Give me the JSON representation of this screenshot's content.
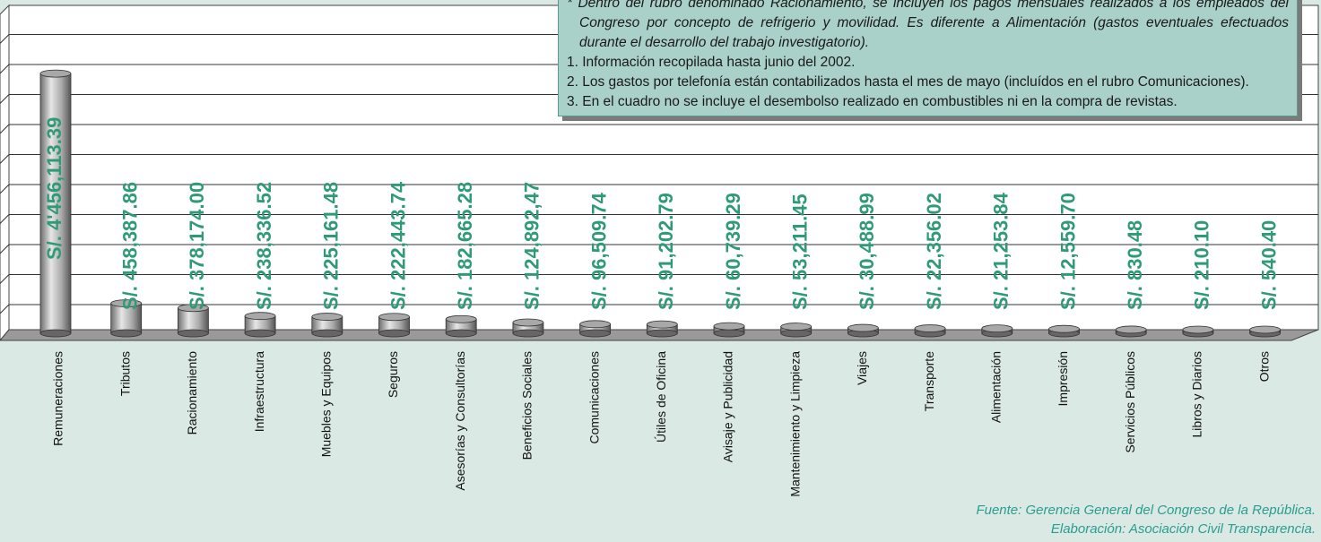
{
  "chart_data": {
    "type": "bar",
    "categories": [
      "Remuneraciones",
      "Tributos",
      "Racionamiento",
      "Infraestructura",
      "Muebles y Equipos",
      "Seguros",
      "Asesorías y Consultorías",
      "Beneficios Sociales",
      "Comunicaciones",
      "Útiles de Oficina",
      "Avisaje y Publicidad",
      "Mantenimiento y Limpieza",
      "Viajes",
      "Transporte",
      "Alimentación",
      "Impresión",
      "Servicios Públicos",
      "Libros y Diarios",
      "Otros"
    ],
    "values": [
      4456113.39,
      458387.86,
      378174.0,
      238336.52,
      225161.48,
      222443.74,
      182665.28,
      124892.47,
      96509.74,
      91202.79,
      60739.29,
      53211.45,
      30488.99,
      22356.02,
      21253.84,
      12559.7,
      830.48,
      210.1,
      540.4
    ],
    "value_labels": [
      "S/. 4'456,113.39",
      "S/. 458,387.86",
      "S/. 378,174.00",
      "S/. 238,336.52",
      "S/. 225,161.48",
      "S/. 222,443.74",
      "S/. 182,665.28",
      "S/. 124,892,47",
      "S/. 96,509.74",
      "S/. 91,202.79",
      "S/. 60,739.29",
      "S/. 53,211.45",
      "S/. 30,488.99",
      "S/. 22,356.02",
      "S/. 21,253.84",
      "S/. 12,559.70",
      "S/. 830.48",
      "S/. 210.10",
      "S/. 540.40"
    ],
    "color": "#a8a8a8",
    "label_color": "#2f9a78",
    "ylim": [
      0,
      5000000
    ],
    "notes": {
      "asterisk": "* Dentro del rubro denominado Racionamiento, se incluyen los pagos mensuales realizados a los empleados del Congreso por concepto de refrigerio y movilidad. Es diferente a Alimentación (gastos eventuales efectuados durante el desarrollo del trabajo investigatorio).",
      "items": [
        "1. Información recopilada hasta junio del 2002.",
        "2. Los gastos por telefonía están contabilizados hasta el mes de mayo (incluídos en el rubro Comunicaciones).",
        "3. En el cuadro no se incluye el desembolso realizado en combustibles ni en la compra de revistas."
      ]
    },
    "source": "Fuente: Gerencia General del Congreso de la República.",
    "credit": "Elaboración: Asociación Civil Transparencia."
  }
}
